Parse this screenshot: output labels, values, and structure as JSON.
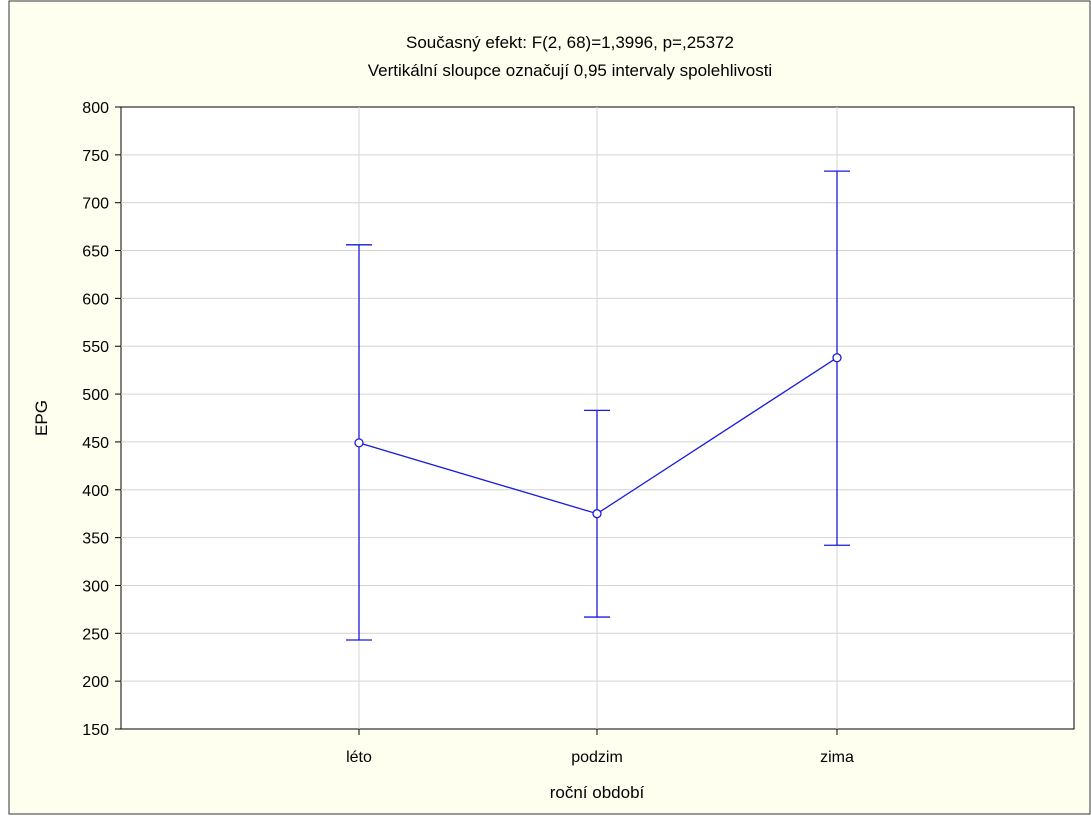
{
  "chart_data": {
    "type": "line",
    "title": "Současný efekt: F(2, 68)=1,3996, p=,25372",
    "subtitle": "Vertikální sloupce označují 0,95 intervaly spolehlivosti",
    "xlabel": "roční období",
    "ylabel": "EPG",
    "categories": [
      "léto",
      "podzim",
      "zima"
    ],
    "series": [
      {
        "values": [
          449,
          375,
          538
        ],
        "ci_low": [
          243,
          267,
          342
        ],
        "ci_high": [
          656,
          483,
          733
        ]
      }
    ],
    "ylim": [
      150,
      800
    ],
    "yticks": [
      150,
      200,
      250,
      300,
      350,
      400,
      450,
      500,
      550,
      600,
      650,
      700,
      750,
      800
    ],
    "grid": true,
    "colors": {
      "series": "#1a1adc",
      "grid": "#d4d4d4",
      "frame_bg": "#fffff0",
      "axis": "#000000"
    }
  }
}
